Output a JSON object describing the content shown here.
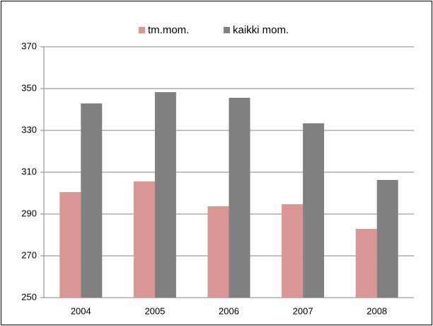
{
  "chart_data": {
    "type": "bar",
    "categories": [
      "2004",
      "2005",
      "2006",
      "2007",
      "2008"
    ],
    "series": [
      {
        "name": "tm.mom.",
        "color": "#d99694",
        "values": [
          300.5,
          305.6,
          293.7,
          294.7,
          282.9
        ]
      },
      {
        "name": "kaikki mom.",
        "color": "#808080",
        "values": [
          342.9,
          348.3,
          345.6,
          333.4,
          306.3
        ]
      }
    ],
    "ylim": [
      250,
      370
    ],
    "yticks": [
      250,
      270,
      290,
      310,
      330,
      350,
      370
    ],
    "grid": true,
    "legend": "top"
  }
}
